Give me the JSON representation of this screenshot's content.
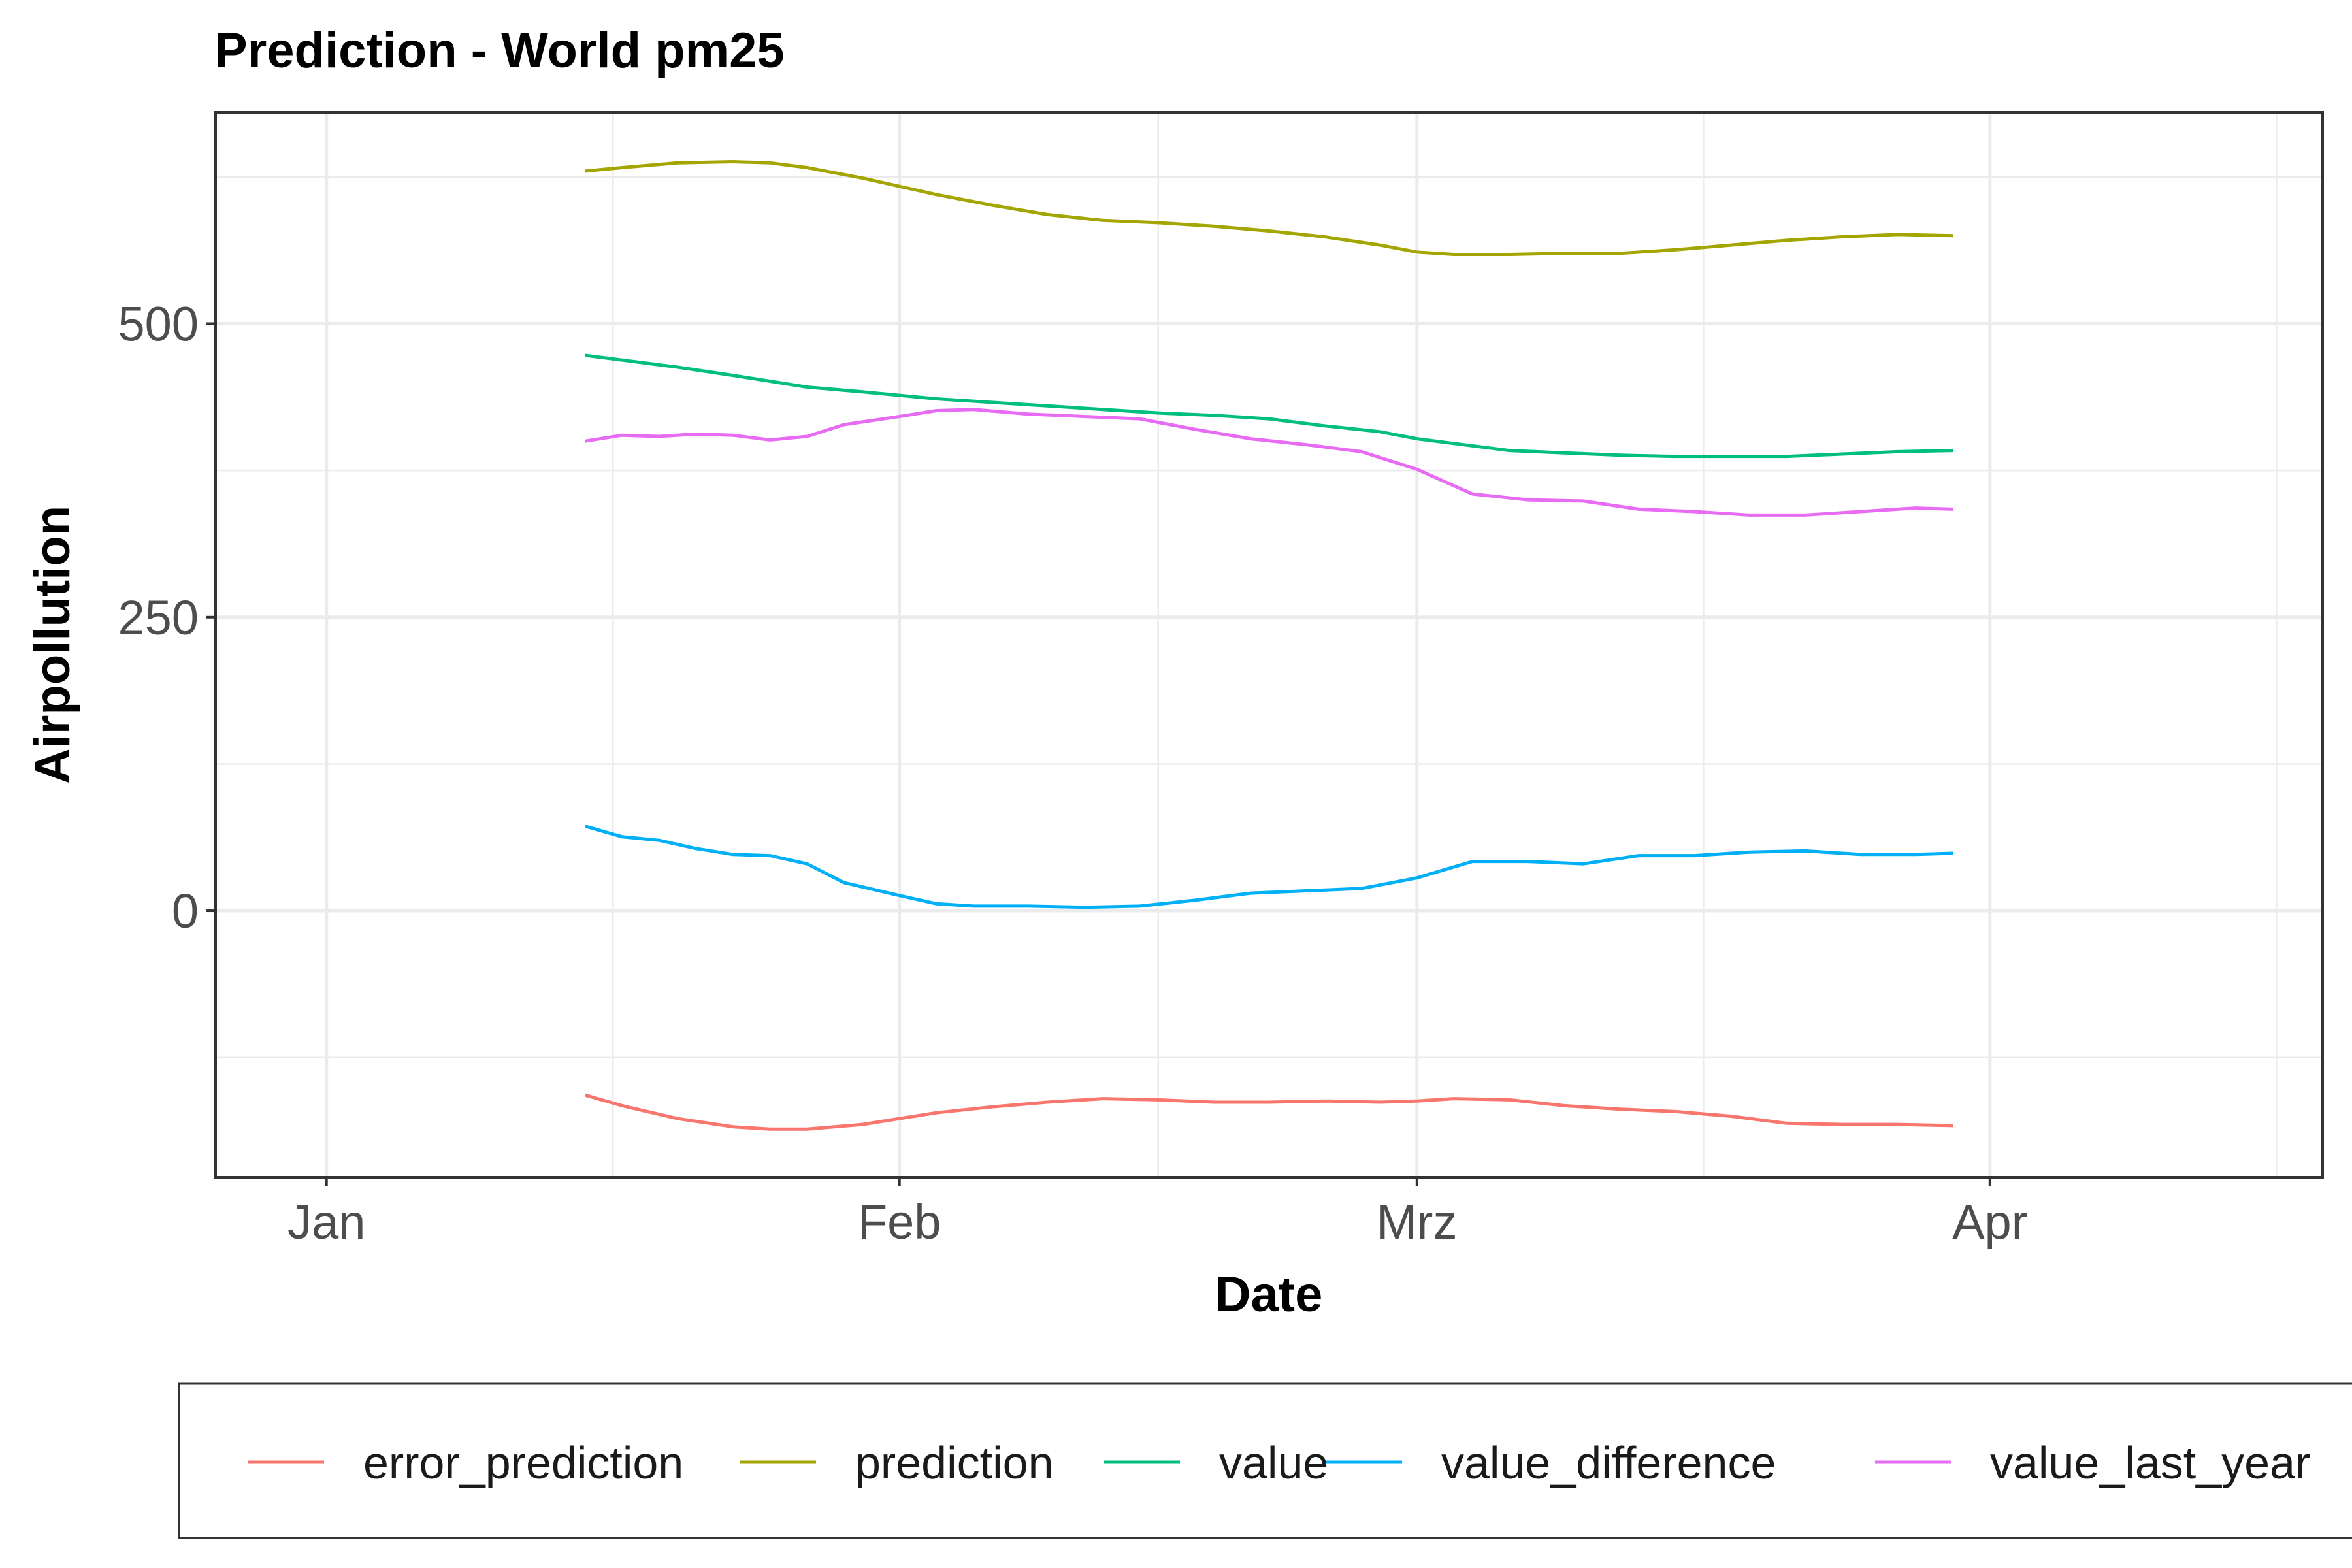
{
  "chart_data": {
    "type": "line",
    "title": "Prediction - World pm25",
    "xlabel": "Date",
    "ylabel": "Airpollution",
    "x_ticks": [
      "Jan",
      "Feb",
      "Mrz",
      "Apr"
    ],
    "x_tick_dates": [
      "2021-01-01",
      "2021-02-01",
      "2021-03-01",
      "2021-04-01"
    ],
    "y_ticks": [
      0,
      250,
      500
    ],
    "xlim": [
      "2020-12-26",
      "2021-04-19"
    ],
    "ylim": [
      -227,
      680
    ],
    "grid": true,
    "legend_position": "bottom",
    "colors": {
      "error_prediction": "#F8766D",
      "prediction": "#A3A500",
      "value": "#00BF7D",
      "value_difference": "#00B0F6",
      "value_last_year": "#E76BF3"
    },
    "series": [
      {
        "name": "error_prediction",
        "x": [
          "2021-01-15",
          "2021-01-17",
          "2021-01-20",
          "2021-01-23",
          "2021-01-25",
          "2021-01-27",
          "2021-01-30",
          "2021-02-01",
          "2021-02-03",
          "2021-02-06",
          "2021-02-09",
          "2021-02-12",
          "2021-02-15",
          "2021-02-18",
          "2021-02-21",
          "2021-02-24",
          "2021-02-27",
          "2021-03-01",
          "2021-03-03",
          "2021-03-06",
          "2021-03-09",
          "2021-03-12",
          "2021-03-15",
          "2021-03-18",
          "2021-03-21",
          "2021-03-24",
          "2021-03-27",
          "2021-03-30"
        ],
        "values": [
          -157,
          -166,
          -177,
          -184,
          -186,
          -186,
          -182,
          -177,
          -172,
          -167,
          -163,
          -160,
          -161,
          -163,
          -163,
          -162,
          -163,
          -162,
          -160,
          -161,
          -166,
          -169,
          -171,
          -175,
          -181,
          -182,
          -182,
          -183
        ]
      },
      {
        "name": "prediction",
        "x": [
          "2021-01-15",
          "2021-01-17",
          "2021-01-20",
          "2021-01-23",
          "2021-01-25",
          "2021-01-27",
          "2021-01-30",
          "2021-02-01",
          "2021-02-03",
          "2021-02-06",
          "2021-02-09",
          "2021-02-12",
          "2021-02-15",
          "2021-02-18",
          "2021-02-21",
          "2021-02-24",
          "2021-02-27",
          "2021-03-01",
          "2021-03-03",
          "2021-03-06",
          "2021-03-09",
          "2021-03-12",
          "2021-03-15",
          "2021-03-18",
          "2021-03-21",
          "2021-03-24",
          "2021-03-27",
          "2021-03-30"
        ],
        "values": [
          630,
          633,
          637,
          638,
          637,
          633,
          624,
          617,
          610,
          601,
          593,
          588,
          586,
          583,
          579,
          574,
          567,
          561,
          559,
          559,
          560,
          560,
          563,
          567,
          571,
          574,
          576,
          575
        ]
      },
      {
        "name": "value",
        "x": [
          "2021-01-15",
          "2021-01-17",
          "2021-01-20",
          "2021-01-23",
          "2021-01-25",
          "2021-01-27",
          "2021-01-30",
          "2021-02-01",
          "2021-02-03",
          "2021-02-06",
          "2021-02-09",
          "2021-02-12",
          "2021-02-15",
          "2021-02-18",
          "2021-02-21",
          "2021-02-24",
          "2021-02-27",
          "2021-03-01",
          "2021-03-03",
          "2021-03-06",
          "2021-03-09",
          "2021-03-12",
          "2021-03-15",
          "2021-03-18",
          "2021-03-21",
          "2021-03-24",
          "2021-03-27",
          "2021-03-30"
        ],
        "values": [
          473,
          469,
          463,
          456,
          451,
          446,
          442,
          439,
          436,
          433,
          430,
          427,
          424,
          422,
          419,
          413,
          408,
          402,
          398,
          392,
          390,
          388,
          387,
          387,
          387,
          389,
          391,
          392
        ]
      },
      {
        "name": "value_difference",
        "x": [
          "2021-01-15",
          "2021-01-17",
          "2021-01-19",
          "2021-01-21",
          "2021-01-23",
          "2021-01-25",
          "2021-01-27",
          "2021-01-29",
          "2021-02-01",
          "2021-02-03",
          "2021-02-05",
          "2021-02-08",
          "2021-02-11",
          "2021-02-14",
          "2021-02-17",
          "2021-02-20",
          "2021-02-23",
          "2021-02-26",
          "2021-03-01",
          "2021-03-04",
          "2021-03-07",
          "2021-03-10",
          "2021-03-13",
          "2021-03-16",
          "2021-03-19",
          "2021-03-22",
          "2021-03-25",
          "2021-03-28",
          "2021-03-30"
        ],
        "values": [
          72,
          63,
          60,
          53,
          48,
          47,
          40,
          24,
          13,
          6,
          4,
          4,
          3,
          4,
          9,
          15,
          17,
          19,
          28,
          42,
          42,
          40,
          47,
          47,
          50,
          51,
          48,
          48,
          49
        ]
      },
      {
        "name": "value_last_year",
        "x": [
          "2021-01-15",
          "2021-01-17",
          "2021-01-19",
          "2021-01-21",
          "2021-01-23",
          "2021-01-25",
          "2021-01-27",
          "2021-01-29",
          "2021-02-01",
          "2021-02-03",
          "2021-02-05",
          "2021-02-08",
          "2021-02-11",
          "2021-02-14",
          "2021-02-17",
          "2021-02-20",
          "2021-02-23",
          "2021-02-26",
          "2021-03-01",
          "2021-03-04",
          "2021-03-07",
          "2021-03-10",
          "2021-03-13",
          "2021-03-16",
          "2021-03-19",
          "2021-03-22",
          "2021-03-25",
          "2021-03-28",
          "2021-03-30"
        ],
        "values": [
          400,
          405,
          404,
          406,
          405,
          401,
          404,
          414,
          421,
          426,
          427,
          423,
          421,
          419,
          410,
          402,
          397,
          391,
          376,
          355,
          350,
          349,
          342,
          340,
          337,
          337,
          340,
          343,
          342
        ]
      }
    ]
  }
}
